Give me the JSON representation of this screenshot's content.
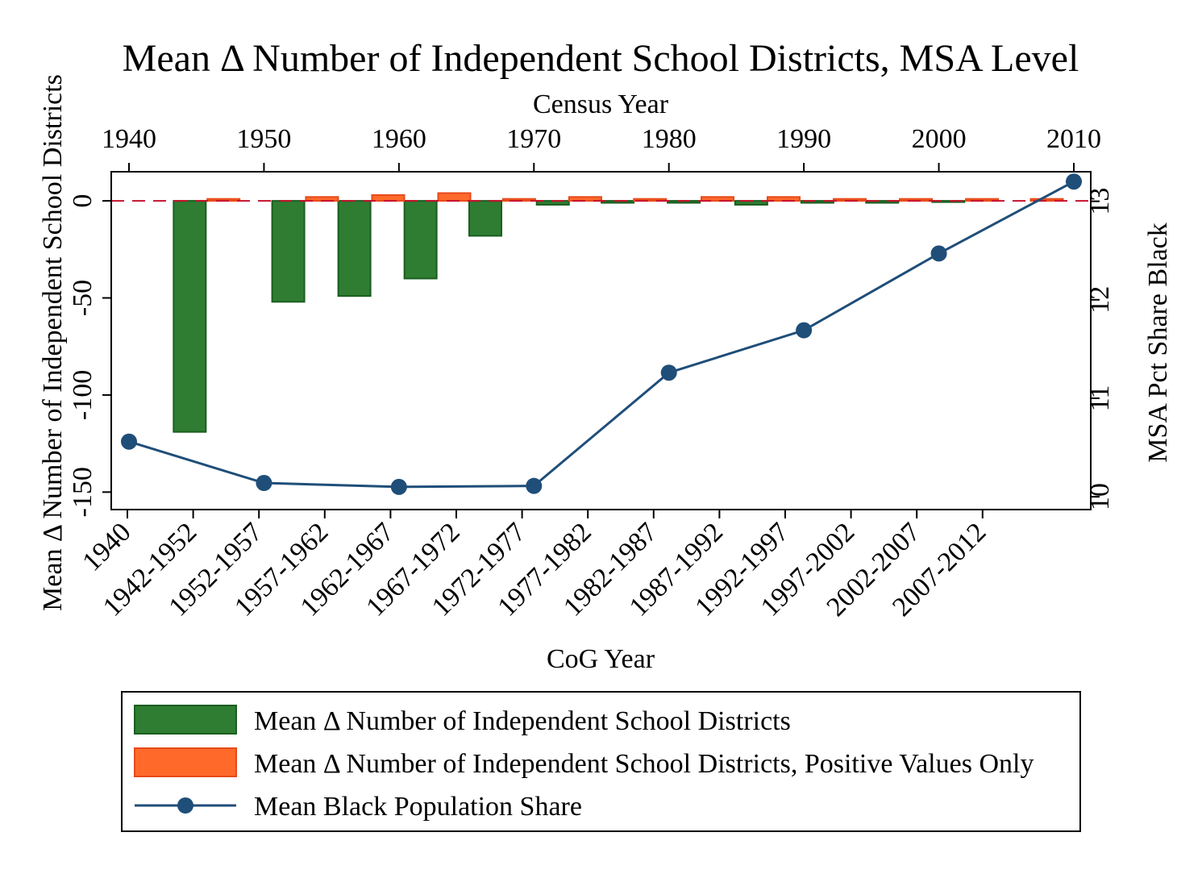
{
  "chart_data": {
    "type": "bar",
    "title": "Mean Δ Number of Independent School Districts, MSA Level",
    "top_axis": {
      "title": "Census Year",
      "ticks": [
        1940,
        1950,
        1960,
        1970,
        1980,
        1990,
        2000,
        2010
      ],
      "range": [
        1940,
        2010
      ]
    },
    "bottom_axis": {
      "title": "CoG Year",
      "categories": [
        "1940",
        "1942-1952",
        "1952-1957",
        "1957-1962",
        "1962-1967",
        "1967-1972",
        "1972-1977",
        "1977-1982",
        "1982-1987",
        "1987-1992",
        "1992-1997",
        "1997-2002",
        "2002-2007",
        "2007-2012"
      ]
    },
    "left_axis": {
      "title": "Mean Δ Number of Independent School Districts",
      "ticks": [
        0,
        -50,
        -100,
        -150
      ],
      "range": [
        -159,
        15
      ]
    },
    "right_axis": {
      "title": "MSA Pct Share Black",
      "ticks": [
        10,
        11,
        12,
        13
      ],
      "range": [
        9.87,
        13.3
      ]
    },
    "reference_line": {
      "y": 0,
      "color": "#c8102e"
    },
    "series": [
      {
        "name": "Mean Δ Number of Independent School Districts",
        "kind": "bar",
        "axis": "left",
        "color": "#2e7d32",
        "values": [
          null,
          -119,
          0,
          -52,
          -49,
          -40,
          -18,
          -2,
          -1,
          0,
          -1,
          -2,
          -1,
          -1,
          0
        ]
      },
      {
        "name": "Mean Δ Number of Independent School Districts, Positive Values Only",
        "kind": "bar",
        "axis": "left",
        "color": "#ff6a2b",
        "values": [
          null,
          0,
          1,
          0,
          2,
          0,
          3,
          0,
          4,
          0,
          1,
          0,
          2,
          0,
          1,
          0,
          2,
          0,
          2,
          0,
          1,
          0,
          1,
          0,
          1,
          0,
          1
        ]
      },
      {
        "name": "Mean Black Population Share",
        "kind": "line",
        "axis": "right",
        "color": "#1f4e79",
        "x": [
          1940,
          1950,
          1960,
          1970,
          1980,
          1990,
          2000,
          2010
        ],
        "values": [
          10.56,
          10.14,
          10.1,
          10.11,
          11.26,
          11.69,
          12.47,
          13.2
        ]
      }
    ],
    "bar_series_pairs": {
      "negative": [
        -119,
        -52,
        -49,
        -40,
        -18,
        -2,
        -1,
        -1,
        -2,
        -1,
        -1,
        0
      ],
      "positive": [
        1,
        2,
        3,
        4,
        1,
        2,
        1,
        2,
        2,
        1,
        1,
        1,
        1
      ],
      "negative_centers": [
        1944.5,
        1951.8,
        1956.7,
        1961.6,
        1966.4,
        1971.4,
        1976.2,
        1981.1,
        1986.1,
        1991.0,
        1995.8,
        2000.7
      ],
      "positive_centers": [
        1947.0,
        1954.3,
        1959.2,
        1964.1,
        1968.9,
        1973.8,
        1978.6,
        1983.6,
        1988.5,
        1993.4,
        1998.3,
        2003.2,
        2008.0
      ]
    },
    "legend": {
      "placement": "bottom",
      "items": [
        "Mean Δ Number of Independent School Districts",
        "Mean Δ Number of Independent School Districts, Positive Values Only",
        "Mean Black Population Share"
      ]
    }
  }
}
